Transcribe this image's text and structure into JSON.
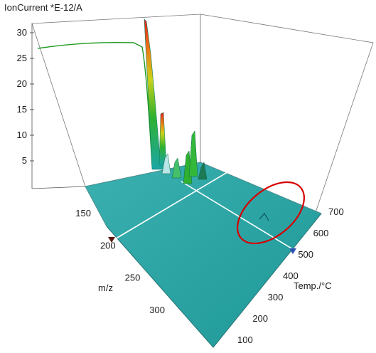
{
  "chart_data": {
    "type": "surface3d",
    "ylabel": "IonCurrent *E-12/A",
    "xlabel_mz": "m/z",
    "xlabel_temp": "Temp./°C",
    "z_ticks": [
      "5",
      "10",
      "15",
      "20",
      "25",
      "30"
    ],
    "mz_ticks": [
      "150",
      "200",
      "250",
      "300"
    ],
    "temp_ticks": [
      "100",
      "200",
      "300",
      "400",
      "500",
      "600",
      "700"
    ],
    "zlim": [
      0,
      30
    ],
    "mz_range": [
      100,
      350
    ],
    "temp_range": [
      80,
      720
    ],
    "markers": {
      "mz_cursor": 200,
      "temp_cursor": 480
    },
    "series": [
      {
        "temp": 80,
        "mz": 200,
        "values_label": "high plateau ~28 dropping near 100 °C"
      }
    ],
    "peaks": [
      {
        "temp": 110,
        "mz": 200,
        "z": 32
      },
      {
        "temp": 130,
        "mz": 195,
        "z": 17
      },
      {
        "temp": 180,
        "mz": 210,
        "z": 11
      },
      {
        "temp": 200,
        "mz": 222,
        "z": 12
      }
    ],
    "colors": {
      "surface": "#2aa8a8",
      "grid": "#ffffff",
      "highlight": "#d40000",
      "mz_marker": "#5a1a10",
      "temp_marker": "#2c4fb3"
    }
  }
}
